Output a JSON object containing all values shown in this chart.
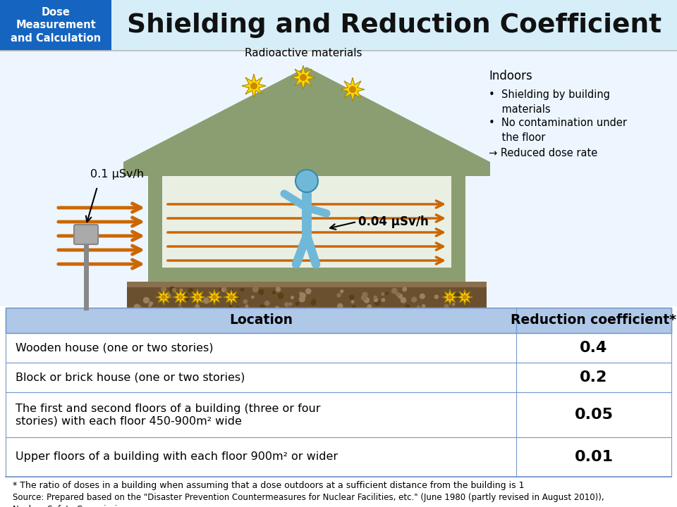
{
  "title": "Shielding and Reduction Coefficient",
  "badge_text": "Dose\nMeasurement\nand Calculation",
  "badge_bg": "#1565C0",
  "badge_text_color": "#FFFFFF",
  "header_bg": "#D6EEF8",
  "background_color": "#FFFFFF",
  "radioactive_label": "Radioactive materials",
  "outdoor_dose": "0.1 μSv/h",
  "indoor_dose": "0.04 μSv/h",
  "indoors_title": "Indoors",
  "indoors_bullets": [
    "•  Shielding by building\n    materials",
    "•  No contamination under\n    the floor",
    "→ Reduced dose rate"
  ],
  "table_header_bg": "#B0C8E8",
  "table_row_bg": "#FFFFFF",
  "table_header_text": [
    "Location",
    "Reduction coefficient*"
  ],
  "table_rows": [
    [
      "Wooden house (one or two stories)",
      "0.4"
    ],
    [
      "Block or brick house (one or two stories)",
      "0.2"
    ],
    [
      "The first and second floors of a building (three or four\nstories) with each floor 450-900m² wide",
      "0.05"
    ],
    [
      "Upper floors of a building with each floor 900m² or wider",
      "0.01"
    ]
  ],
  "footnote1": "* The ratio of doses in a building when assuming that a dose outdoors at a sufficient distance from the building is 1",
  "footnote2": "Source: Prepared based on the \"Disaster Prevention Countermeasures for Nuclear Facilities, etc.\" (June 1980 (partly revised in August 2010)),\nNuclear Safety Commission",
  "arrow_color": "#CC6600",
  "house_wall_color": "#8B9E72",
  "house_interior_color": "#E8EEE0",
  "ground_dark": "#6B5030",
  "ground_light": "#8B7050",
  "person_color": "#70B8D8",
  "star_outer": "#FFD700",
  "star_inner": "#CC8800",
  "monitor_color": "#AAAAAA",
  "monitor_dark": "#888888"
}
